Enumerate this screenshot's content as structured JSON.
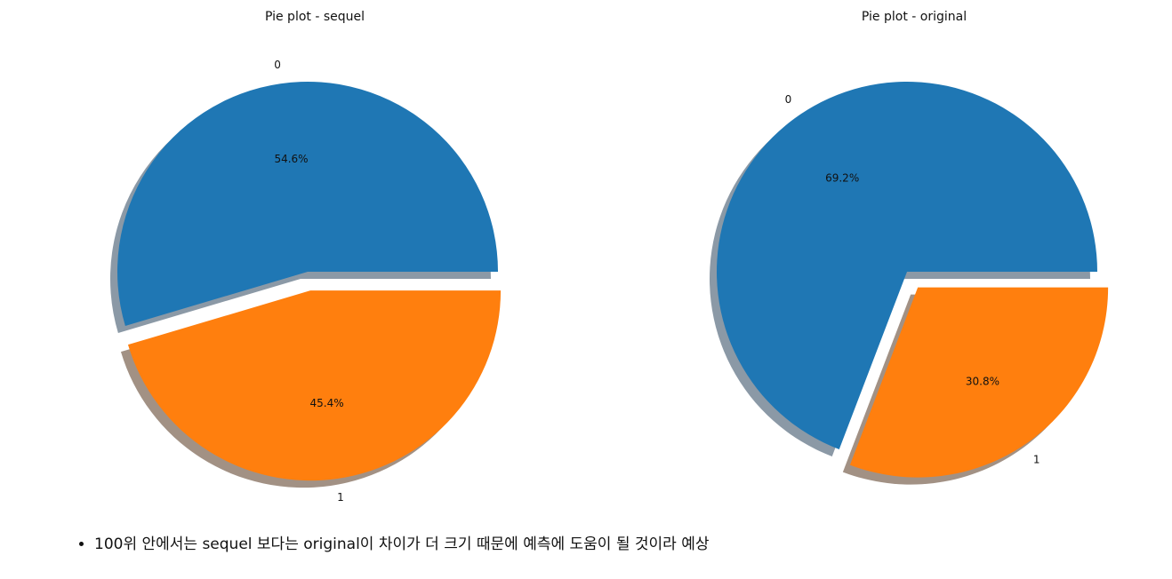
{
  "chart_data": [
    {
      "type": "pie",
      "title": "Pie plot - sequel",
      "categories": [
        "0",
        "1"
      ],
      "values": [
        54.6,
        45.4
      ],
      "percent_labels": [
        "54.6%",
        "45.4%"
      ],
      "exploded": [
        false,
        true
      ],
      "shadow": true
    },
    {
      "type": "pie",
      "title": "Pie plot - original",
      "categories": [
        "0",
        "1"
      ],
      "values": [
        69.2,
        30.8
      ],
      "percent_labels": [
        "69.2%",
        "30.8%"
      ],
      "exploded": [
        false,
        true
      ],
      "shadow": true
    }
  ],
  "colors": [
    "#1f77b4",
    "#ff7f0e"
  ],
  "notes": [
    "100위 안에서는 sequel 보다는 original이 차이가 더 크기 때문에 예측에 도움이 될 것이라 예상"
  ]
}
